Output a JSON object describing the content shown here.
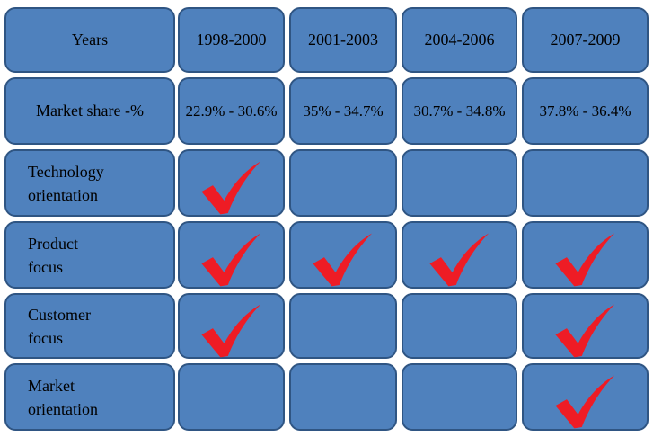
{
  "header": {
    "label": "Years",
    "columns": [
      "1998-2000",
      "2001-2003",
      "2004-2006",
      "2007-2009"
    ]
  },
  "market_share": {
    "label": "Market share -%",
    "values": [
      "22.9% - 30.6%",
      "35% - 34.7%",
      "30.7% - 34.8%",
      "37.8% - 36.4%"
    ]
  },
  "rows": [
    {
      "label": "Technology orientation",
      "checks": [
        true,
        false,
        false,
        false
      ]
    },
    {
      "label": "Product focus",
      "checks": [
        true,
        true,
        true,
        true
      ]
    },
    {
      "label": "Customer focus",
      "checks": [
        true,
        false,
        false,
        true
      ]
    },
    {
      "label": "Market orientation",
      "checks": [
        false,
        false,
        false,
        true
      ]
    }
  ]
}
